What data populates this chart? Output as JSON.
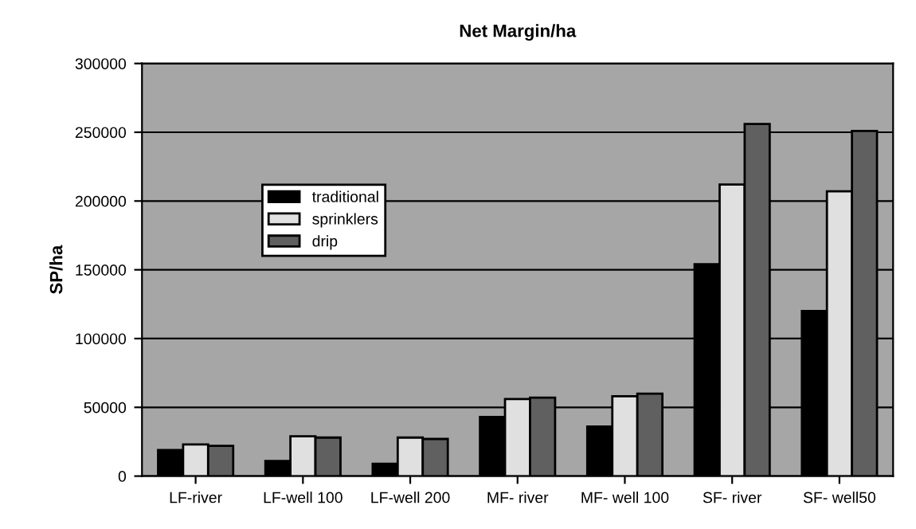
{
  "chart_data": {
    "type": "bar",
    "title": "Net Margin/ha",
    "ylabel": "SP/ha",
    "categories": [
      "LF-river",
      "LF-well 100",
      "LF-well 200",
      "MF- river",
      "MF- well 100",
      "SF- river",
      "SF- well50"
    ],
    "series": [
      {
        "name": "traditional",
        "color": "#000000",
        "values": [
          19000,
          11000,
          9000,
          43000,
          36000,
          154000,
          120000
        ]
      },
      {
        "name": "sprinklers",
        "color": "#e0e0e0",
        "values": [
          23000,
          29000,
          28000,
          56000,
          58000,
          212000,
          207000
        ]
      },
      {
        "name": "drip",
        "color": "#606060",
        "values": [
          22000,
          28000,
          27000,
          57000,
          60000,
          256000,
          251000
        ]
      }
    ],
    "ylim": [
      0,
      300000
    ],
    "yticks": [
      0,
      50000,
      100000,
      150000,
      200000,
      250000,
      300000
    ],
    "grid": "y",
    "legend": "left"
  }
}
